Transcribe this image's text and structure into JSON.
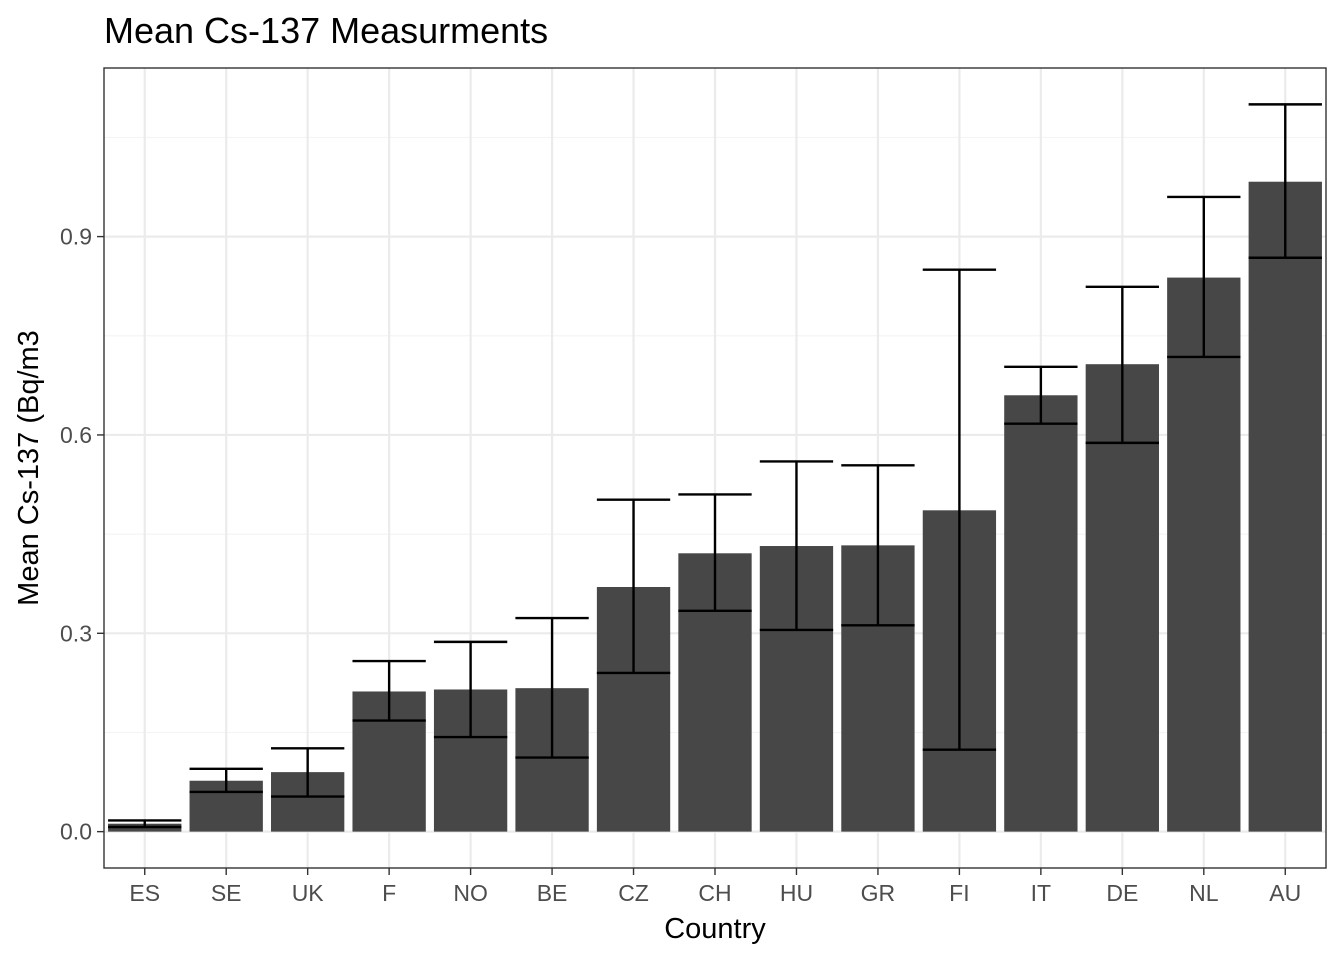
{
  "chart_data": {
    "type": "bar",
    "title": "Mean Cs-137 Measurments",
    "xlabel": "Country",
    "ylabel": "Mean Cs-137 (Bq/m3",
    "categories": [
      "ES",
      "SE",
      "UK",
      "F",
      "NO",
      "BE",
      "CZ",
      "CH",
      "HU",
      "GR",
      "FI",
      "IT",
      "DE",
      "NL",
      "AU"
    ],
    "values": [
      0.012,
      0.077,
      0.09,
      0.212,
      0.215,
      0.217,
      0.37,
      0.421,
      0.432,
      0.433,
      0.486,
      0.66,
      0.707,
      0.838,
      0.983
    ],
    "error_low": [
      0.007,
      0.06,
      0.053,
      0.168,
      0.143,
      0.112,
      0.24,
      0.334,
      0.305,
      0.312,
      0.124,
      0.617,
      0.588,
      0.718,
      0.868
    ],
    "error_high": [
      0.017,
      0.095,
      0.126,
      0.258,
      0.287,
      0.323,
      0.502,
      0.51,
      0.56,
      0.554,
      0.85,
      0.703,
      0.824,
      0.96,
      1.1
    ],
    "ylim": [
      -0.055,
      1.155
    ],
    "yticks": [
      0.0,
      0.3,
      0.6,
      0.9
    ],
    "ytick_labels": [
      "0.0",
      "0.3",
      "0.6",
      "0.9"
    ],
    "grid": true,
    "theme": "black-and-white",
    "bar_color": "#474747",
    "error_bar_color": "#000000",
    "grid_major_color": "#ebebeb",
    "grid_minor_color": "#f4f4f4",
    "panel_border_color": "#333333"
  }
}
